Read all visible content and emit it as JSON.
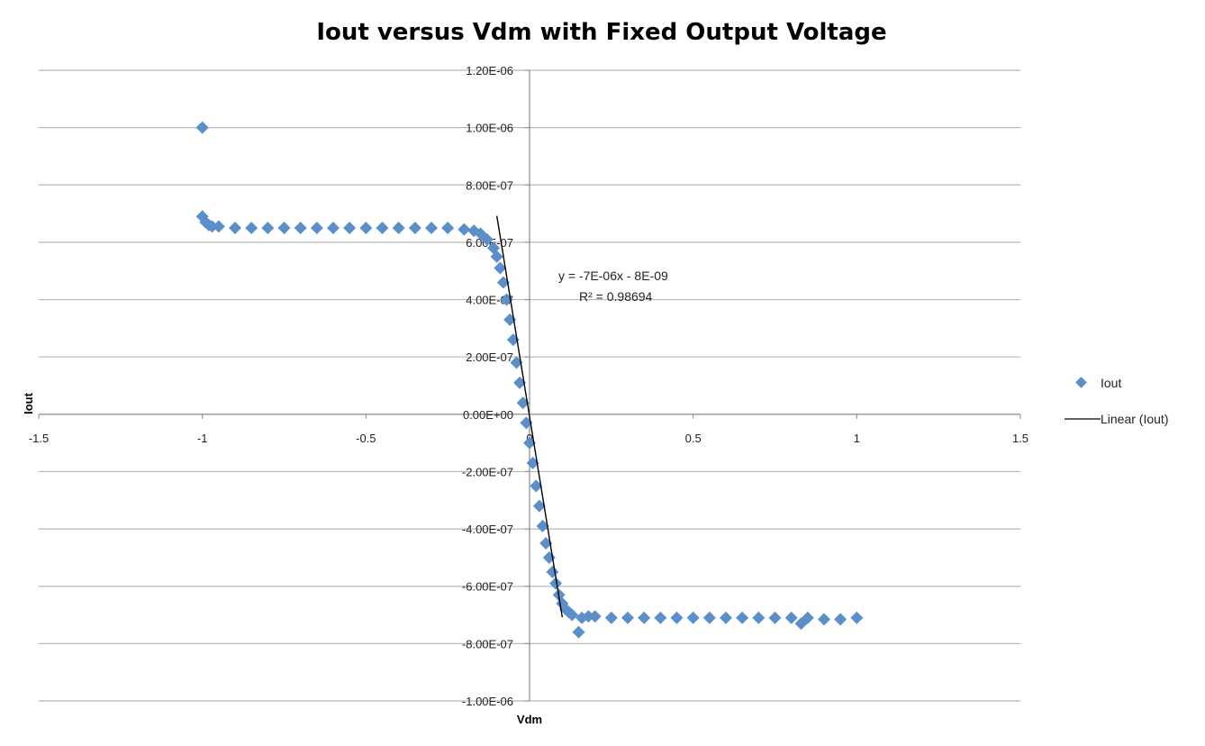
{
  "chart_data": {
    "type": "scatter",
    "title": "Iout versus Vdm with Fixed Output Voltage",
    "xlabel": "Vdm",
    "ylabel": "Iout",
    "xlim": [
      -1.5,
      1.5
    ],
    "ylim": [
      -1e-06,
      1.2e-06
    ],
    "x_ticks": [
      "-1.5",
      "-1",
      "-0.5",
      "0",
      "0.5",
      "1",
      "1.5"
    ],
    "y_ticks": [
      "1.20E-06",
      "1.00E-06",
      "8.00E-07",
      "6.00E-07",
      "4.00E-07",
      "2.00E-07",
      "0.00E+00",
      "-2.00E-07",
      "-4.00E-07",
      "-6.00E-07",
      "-8.00E-07",
      "-1.00E-06"
    ],
    "y_tick_values": [
      1.2e-06,
      1e-06,
      8e-07,
      6e-07,
      4e-07,
      2e-07,
      0,
      -2e-07,
      -4e-07,
      -6e-07,
      -8e-07,
      -1e-06
    ],
    "x_tick_values": [
      -1.5,
      -1,
      -0.5,
      0,
      0.5,
      1,
      1.5
    ],
    "grid": "horizontal",
    "legend_position": "right",
    "series": [
      {
        "name": "Iout",
        "color": "#5b8fc9",
        "marker": "diamond",
        "x": [
          -1.0,
          -1.0,
          -0.99,
          -0.98,
          -0.97,
          -0.95,
          -0.9,
          -0.85,
          -0.8,
          -0.75,
          -0.7,
          -0.65,
          -0.6,
          -0.55,
          -0.5,
          -0.45,
          -0.4,
          -0.35,
          -0.3,
          -0.25,
          -0.2,
          -0.17,
          -0.15,
          -0.13,
          -0.11,
          -0.1,
          -0.09,
          -0.08,
          -0.07,
          -0.06,
          -0.05,
          -0.04,
          -0.03,
          -0.02,
          -0.01,
          0.0,
          0.01,
          0.02,
          0.03,
          0.04,
          0.05,
          0.06,
          0.07,
          0.08,
          0.09,
          0.1,
          0.11,
          0.12,
          0.13,
          0.15,
          0.16,
          0.18,
          0.2,
          0.25,
          0.3,
          0.35,
          0.4,
          0.45,
          0.5,
          0.55,
          0.6,
          0.65,
          0.7,
          0.75,
          0.8,
          0.83,
          0.85,
          0.9,
          0.95,
          1.0
        ],
        "y": [
          1e-06,
          6.9e-07,
          6.7e-07,
          6.6e-07,
          6.55e-07,
          6.55e-07,
          6.5e-07,
          6.5e-07,
          6.5e-07,
          6.5e-07,
          6.5e-07,
          6.5e-07,
          6.5e-07,
          6.5e-07,
          6.5e-07,
          6.5e-07,
          6.5e-07,
          6.5e-07,
          6.5e-07,
          6.5e-07,
          6.45e-07,
          6.4e-07,
          6.3e-07,
          6.1e-07,
          5.8e-07,
          5.5e-07,
          5.1e-07,
          4.6e-07,
          4e-07,
          3.3e-07,
          2.6e-07,
          1.8e-07,
          1.1e-07,
          4e-08,
          -3e-08,
          -1e-07,
          -1.7e-07,
          -2.5e-07,
          -3.2e-07,
          -3.9e-07,
          -4.5e-07,
          -5e-07,
          -5.5e-07,
          -5.9e-07,
          -6.3e-07,
          -6.6e-07,
          -6.8e-07,
          -6.9e-07,
          -7e-07,
          -7.6e-07,
          -7.1e-07,
          -7.05e-07,
          -7.05e-07,
          -7.1e-07,
          -7.1e-07,
          -7.1e-07,
          -7.1e-07,
          -7.1e-07,
          -7.1e-07,
          -7.1e-07,
          -7.1e-07,
          -7.1e-07,
          -7.1e-07,
          -7.1e-07,
          -7.1e-07,
          -7.3e-07,
          -7.1e-07,
          -7.15e-07,
          -7.15e-07,
          -7.1e-07
        ]
      }
    ],
    "trendline": {
      "name": "Linear (Iout)",
      "color": "#000000",
      "slope": -7e-06,
      "intercept": -8e-09,
      "x_range": [
        -0.1,
        0.1
      ],
      "equation_label": "y = -7E-06x - 8E-09",
      "r2_label": "R² = 0.98694"
    }
  }
}
